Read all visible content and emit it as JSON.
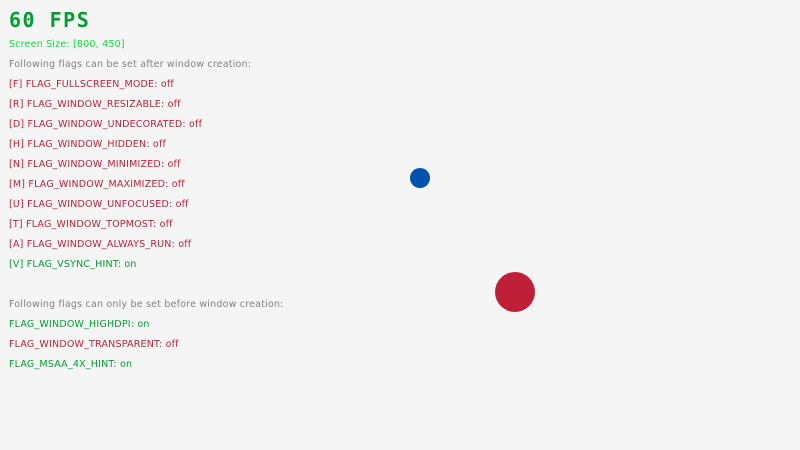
{
  "fps": "60 FPS",
  "screen_size": "Screen Size: [800, 450]",
  "after_header": "Following flags can be set after window creation:",
  "after_flags": [
    {
      "text": "[F] FLAG_FULLSCREEN_MODE: off",
      "on": false
    },
    {
      "text": "[R] FLAG_WINDOW_RESIZABLE: off",
      "on": false
    },
    {
      "text": "[D] FLAG_WINDOW_UNDECORATED: off",
      "on": false
    },
    {
      "text": "[H] FLAG_WINDOW_HIDDEN: off",
      "on": false
    },
    {
      "text": "[N] FLAG_WINDOW_MINIMIZED: off",
      "on": false
    },
    {
      "text": "[M] FLAG_WINDOW_MAXIMIZED: off",
      "on": false
    },
    {
      "text": "[U] FLAG_WINDOW_UNFOCUSED: off",
      "on": false
    },
    {
      "text": "[T] FLAG_WINDOW_TOPMOST: off",
      "on": false
    },
    {
      "text": "[A] FLAG_WINDOW_ALWAYS_RUN: off",
      "on": false
    },
    {
      "text": "[V] FLAG_VSYNC_HINT: on",
      "on": true
    }
  ],
  "before_header": "Following flags can only be set before window creation:",
  "before_flags": [
    {
      "text": "FLAG_WINDOW_HIGHDPI: on",
      "on": true
    },
    {
      "text": "FLAG_WINDOW_TRANSPARENT: off",
      "on": false
    },
    {
      "text": "FLAG_MSAA_4X_HINT: on",
      "on": true
    }
  ],
  "colors": {
    "background": "#f5f5f5",
    "on": "#009e2f",
    "off": "#be2137",
    "screen_size": "#00e430",
    "header": "#828282",
    "blue_ball": "#0052ac",
    "red_ball": "#be2137"
  }
}
